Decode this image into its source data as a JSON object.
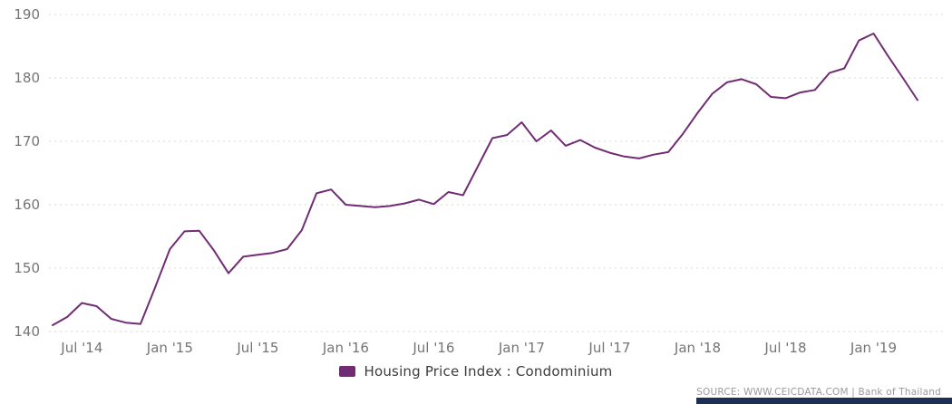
{
  "chart_data": {
    "type": "line",
    "title": "Housing Price Index : Condominium",
    "legend_label": "Housing Price Index : Condominium",
    "legend_position": "bottom",
    "grid": true,
    "line_color": "#712d73",
    "ylim": [
      140,
      190
    ],
    "y_ticks": [
      190,
      180,
      170,
      160,
      150,
      140
    ],
    "x_tick_labels": [
      "Jul '14",
      "Jan '15",
      "Jul '15",
      "Jan '16",
      "Jul '16",
      "Jan '17",
      "Jul '17",
      "Jan '18",
      "Jul '18",
      "Jan '19"
    ],
    "x_tick_indices": [
      2,
      8,
      14,
      20,
      26,
      32,
      38,
      44,
      50,
      56
    ],
    "x": [
      "May '14",
      "Jun '14",
      "Jul '14",
      "Aug '14",
      "Sep '14",
      "Oct '14",
      "Nov '14",
      "Dec '14",
      "Jan '15",
      "Feb '15",
      "Mar '15",
      "Apr '15",
      "May '15",
      "Jun '15",
      "Jul '15",
      "Aug '15",
      "Sep '15",
      "Oct '15",
      "Nov '15",
      "Dec '15",
      "Jan '16",
      "Feb '16",
      "Mar '16",
      "Apr '16",
      "May '16",
      "Jun '16",
      "Jul '16",
      "Aug '16",
      "Sep '16",
      "Oct '16",
      "Nov '16",
      "Dec '16",
      "Jan '17",
      "Feb '17",
      "Mar '17",
      "Apr '17",
      "May '17",
      "Jun '17",
      "Jul '17",
      "Aug '17",
      "Sep '17",
      "Oct '17",
      "Nov '17",
      "Dec '17",
      "Jan '18",
      "Feb '18",
      "Mar '18",
      "Apr '18",
      "May '18",
      "Jun '18",
      "Jul '18",
      "Aug '18",
      "Sep '18",
      "Oct '18",
      "Nov '18",
      "Dec '18",
      "Jan '19",
      "Feb '19",
      "Mar '19",
      "Apr '19"
    ],
    "values": [
      141.0,
      142.3,
      144.5,
      144.0,
      142.0,
      141.4,
      141.2,
      147.0,
      153.0,
      155.8,
      155.9,
      152.8,
      149.2,
      151.8,
      152.1,
      152.4,
      153.0,
      156.0,
      161.8,
      162.4,
      160.0,
      159.8,
      159.6,
      159.8,
      160.2,
      160.8,
      160.1,
      162.0,
      161.5,
      166.0,
      170.5,
      171.0,
      173.0,
      170.0,
      171.7,
      169.3,
      170.2,
      169.0,
      168.2,
      167.6,
      167.3,
      167.9,
      168.3,
      171.2,
      174.5,
      177.5,
      179.3,
      179.8,
      179.0,
      177.0,
      176.8,
      177.7,
      178.1,
      180.8,
      181.5,
      185.9,
      187.0,
      183.4,
      180.0,
      176.5
    ]
  },
  "footer": {
    "source_text": "SOURCE: WWW.CEICDATA.COM | Bank of Thailand",
    "bar_color": "#1d2f54"
  },
  "colors": {
    "tick_label": "#757575",
    "grid_line": "#d8d8d8",
    "legend_text": "#3c3c3c",
    "source_text": "#9b9b9b",
    "background": "#ffffff"
  }
}
